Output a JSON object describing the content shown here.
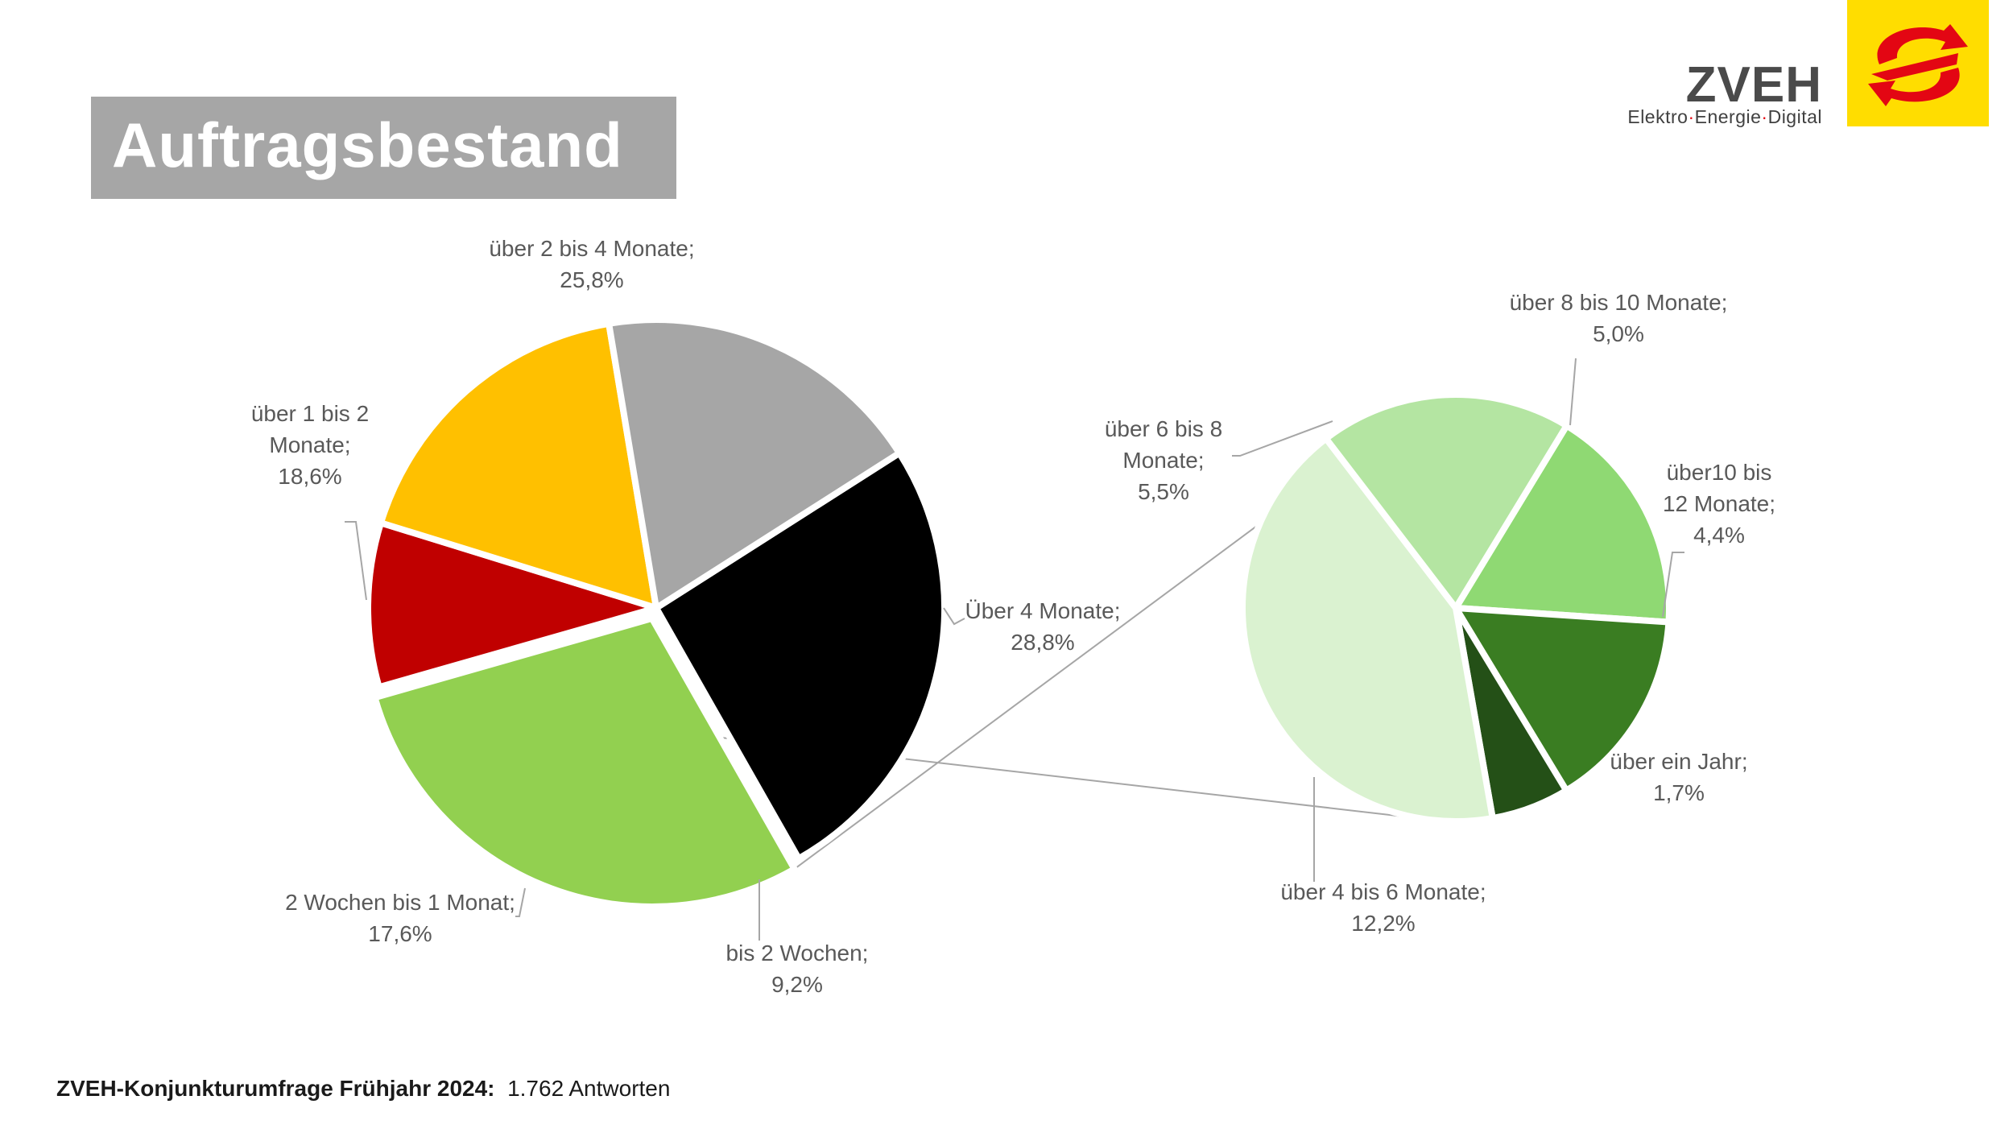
{
  "header": {
    "title": "Auftragsbestand"
  },
  "logo": {
    "name": "ZVEH",
    "tagline_parts": [
      "Elektro",
      "Energie",
      "Digital"
    ],
    "tagline_separator": "·",
    "square_color": "#ffdd00",
    "mark_color": "#e30613"
  },
  "footer": {
    "survey": "ZVEH-Konjunkturumfrage Frühjahr 2024:",
    "responses": "1.762 Antworten"
  },
  "chart_data": {
    "type": "pie",
    "subtype": "pie-of-pie",
    "main_pie": {
      "slices": [
        {
          "label": "über 2 bis 4 Monate;",
          "value_label": "25,8%",
          "value": 25.8,
          "color": "#000000"
        },
        {
          "label": "Über 4 Monate;",
          "value_label": "28,8%",
          "value": 28.8,
          "color": "#92d050"
        },
        {
          "label": "bis 2 Wochen;",
          "value_label": "9,2%",
          "value": 9.2,
          "color": "#c00000"
        },
        {
          "label": "2 Wochen bis 1 Monat;",
          "value_label": "17,6%",
          "value": 17.6,
          "color": "#ffc000"
        },
        {
          "label": "über 1 bis 2 Monate;",
          "value_label": "18,6%",
          "value": 18.6,
          "color": "#a6a6a6"
        }
      ]
    },
    "secondary_pie": {
      "slices": [
        {
          "label": "über 8 bis 10 Monate;",
          "value_label": "5,0%",
          "value": 5.0,
          "color": "#8fd973"
        },
        {
          "label": "über10 bis 12 Monate;",
          "value_label": "4,4%",
          "value": 4.4,
          "color": "#3a7d22"
        },
        {
          "label": "über ein Jahr;",
          "value_label": "1,7%",
          "value": 1.7,
          "color": "#245017"
        },
        {
          "label": "über 4 bis 6 Monate;",
          "value_label": "12,2%",
          "value": 12.2,
          "color": "#daf2d0"
        },
        {
          "label": "über 6 bis 8 Monate;",
          "value_label": "5,5%",
          "value": 5.5,
          "color": "#b4e5a2"
        }
      ]
    },
    "legend": "none"
  }
}
